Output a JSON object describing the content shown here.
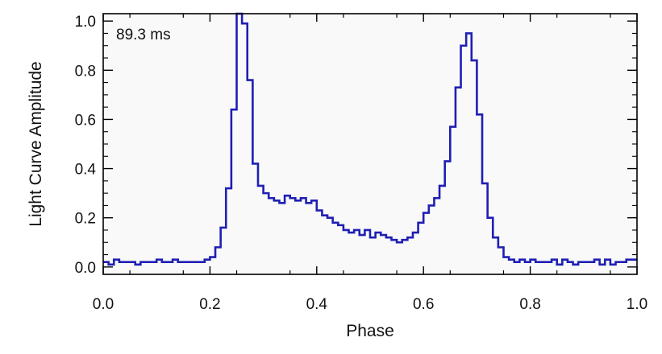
{
  "chart_data": {
    "type": "line",
    "line_style": "step",
    "xlabel": "Phase",
    "ylabel": "Light Curve Amplitude",
    "annotation": "89.3 ms",
    "xlim": [
      0.0,
      1.0
    ],
    "ylim": [
      -0.03,
      1.03
    ],
    "x_ticks": [
      "0.0",
      "0.2",
      "0.4",
      "0.6",
      "0.8",
      "1.0"
    ],
    "y_ticks": [
      "0.0",
      "0.2",
      "0.4",
      "0.6",
      "0.8",
      "1.0"
    ],
    "grid": false,
    "colors": {
      "series": "#1f1fb4",
      "plot_background": "#f9f9f9",
      "frame": "#000000"
    },
    "series": [
      {
        "x": [
          0.0,
          0.01,
          0.02,
          0.03,
          0.04,
          0.05,
          0.06,
          0.07,
          0.08,
          0.09,
          0.1,
          0.11,
          0.12,
          0.13,
          0.14,
          0.15,
          0.16,
          0.17,
          0.18,
          0.19,
          0.2,
          0.21,
          0.22,
          0.23,
          0.24,
          0.25,
          0.26,
          0.27,
          0.28,
          0.29,
          0.3,
          0.31,
          0.32,
          0.33,
          0.34,
          0.35,
          0.36,
          0.37,
          0.38,
          0.39,
          0.4,
          0.41,
          0.42,
          0.43,
          0.44,
          0.45,
          0.46,
          0.47,
          0.48,
          0.49,
          0.5,
          0.51,
          0.52,
          0.53,
          0.54,
          0.55,
          0.56,
          0.57,
          0.58,
          0.59,
          0.6,
          0.61,
          0.62,
          0.63,
          0.64,
          0.65,
          0.66,
          0.67,
          0.68,
          0.69,
          0.7,
          0.71,
          0.72,
          0.73,
          0.74,
          0.75,
          0.76,
          0.77,
          0.78,
          0.79,
          0.8,
          0.81,
          0.82,
          0.83,
          0.84,
          0.85,
          0.86,
          0.87,
          0.88,
          0.89,
          0.9,
          0.91,
          0.92,
          0.93,
          0.94,
          0.95,
          0.96,
          0.97,
          0.98,
          0.99
        ],
        "y": [
          0.02,
          0.01,
          0.03,
          0.02,
          0.02,
          0.02,
          0.01,
          0.02,
          0.02,
          0.02,
          0.03,
          0.02,
          0.02,
          0.03,
          0.02,
          0.02,
          0.02,
          0.02,
          0.02,
          0.03,
          0.04,
          0.08,
          0.16,
          0.32,
          0.64,
          1.03,
          0.99,
          0.76,
          0.42,
          0.33,
          0.3,
          0.28,
          0.27,
          0.26,
          0.29,
          0.28,
          0.27,
          0.28,
          0.26,
          0.27,
          0.23,
          0.21,
          0.2,
          0.18,
          0.17,
          0.15,
          0.14,
          0.15,
          0.13,
          0.15,
          0.12,
          0.14,
          0.13,
          0.12,
          0.11,
          0.1,
          0.11,
          0.12,
          0.14,
          0.18,
          0.22,
          0.25,
          0.28,
          0.33,
          0.43,
          0.57,
          0.73,
          0.9,
          0.95,
          0.84,
          0.62,
          0.34,
          0.2,
          0.12,
          0.08,
          0.04,
          0.03,
          0.02,
          0.03,
          0.02,
          0.03,
          0.02,
          0.02,
          0.02,
          0.03,
          0.01,
          0.03,
          0.02,
          0.01,
          0.02,
          0.02,
          0.02,
          0.03,
          0.01,
          0.03,
          0.01,
          0.02,
          0.02,
          0.03,
          0.03
        ]
      }
    ]
  }
}
